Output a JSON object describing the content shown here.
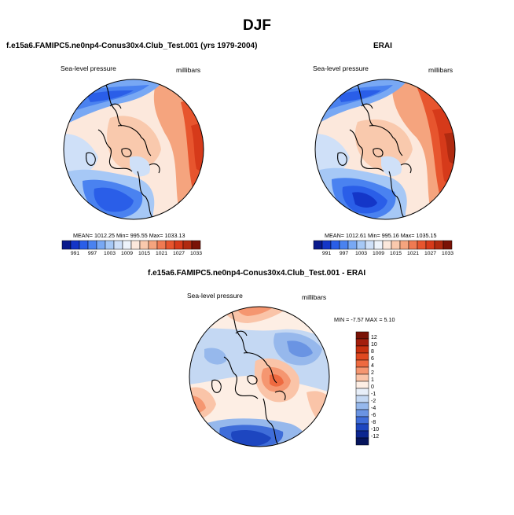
{
  "page": {
    "season_title": "DJF"
  },
  "panels": [
    {
      "title": "f.e15a6.FAMIPC5.ne0np4-Conus30x4.Club_Test.001 (yrs 1979-2004)",
      "left_label": "Sea-level pressure",
      "right_label": "millibars",
      "stats": "MEAN= 1012.25  Min= 995.55  Max= 1033.13",
      "colorbar_ticks": [
        "991",
        "997",
        "1003",
        "1009",
        "1015",
        "1021",
        "1027",
        "1033"
      ]
    },
    {
      "title": "ERAI",
      "left_label": "Sea-level pressure",
      "right_label": "millibars",
      "stats": "MEAN= 1012.61  Min= 995.16  Max= 1035.15",
      "colorbar_ticks": [
        "991",
        "997",
        "1003",
        "1009",
        "1015",
        "1021",
        "1027",
        "1033"
      ]
    },
    {
      "title": "f.e15a6.FAMIPC5.ne0np4-Conus30x4.Club_Test.001 - ERAI",
      "left_label": "Sea-level pressure",
      "right_label": "millibars",
      "stats": "MIN =  -7.57  MAX =   5.10",
      "colorbar_ticks": [
        "12",
        "10",
        "8",
        "6",
        "4",
        "2",
        "1",
        "0",
        "-1",
        "-2",
        "-4",
        "-6",
        "-8",
        "-10",
        "-12"
      ]
    }
  ],
  "colors": {
    "abs_scale": [
      "#0a1a8c",
      "#1436c8",
      "#2a5ee8",
      "#4a82f0",
      "#78a8f4",
      "#a6c8f6",
      "#cfe0f8",
      "#eef3fb",
      "#fce8dc",
      "#f9c9ad",
      "#f5a47e",
      "#f07a52",
      "#e7552e",
      "#d63a1a",
      "#b02a10",
      "#7a1206"
    ],
    "diff_scale": [
      "#7a1206",
      "#a41e0c",
      "#c8300f",
      "#e04820",
      "#ee6a40",
      "#f59670",
      "#fac4a8",
      "#fdeee4",
      "#e8eff9",
      "#c4d8f3",
      "#96b8ec",
      "#6a94e3",
      "#3f6dd9",
      "#1d46c0",
      "#0c2690",
      "#06145c"
    ],
    "continent_outline": "#000000"
  },
  "chart_data": [
    {
      "type": "polar-contour-map",
      "title": "f.e15a6.FAMIPC5.ne0np4-Conus30x4.Club_Test.001 (yrs 1979-2004)",
      "variable": "Sea-level pressure",
      "units": "millibars",
      "mean": 1012.25,
      "min": 995.55,
      "max": 1033.13,
      "colorbar_levels": [
        991,
        997,
        1003,
        1009,
        1015,
        1021,
        1027,
        1033
      ],
      "colorbar_range": [
        985,
        1039
      ]
    },
    {
      "type": "polar-contour-map",
      "title": "ERAI",
      "variable": "Sea-level pressure",
      "units": "millibars",
      "mean": 1012.61,
      "min": 995.16,
      "max": 1035.15,
      "colorbar_levels": [
        991,
        997,
        1003,
        1009,
        1015,
        1021,
        1027,
        1033
      ],
      "colorbar_range": [
        985,
        1039
      ]
    },
    {
      "type": "polar-contour-map",
      "title": "f.e15a6.FAMIPC5.ne0np4-Conus30x4.Club_Test.001 - ERAI",
      "variable": "Sea-level pressure",
      "units": "millibars",
      "min": -7.57,
      "max": 5.1,
      "colorbar_levels": [
        12,
        10,
        8,
        6,
        4,
        2,
        1,
        0,
        -1,
        -2,
        -4,
        -6,
        -8,
        -10,
        -12
      ],
      "colorbar_orientation": "vertical"
    }
  ]
}
